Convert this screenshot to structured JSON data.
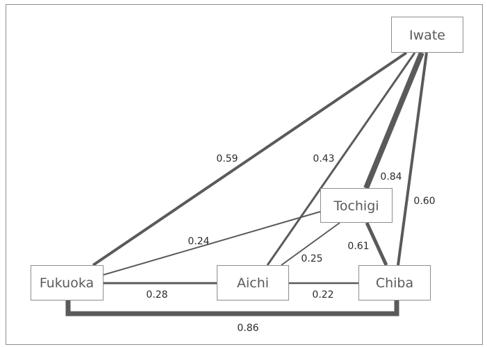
{
  "nodes": {
    "iwate": "Iwate",
    "tochigi": "Tochigi",
    "fukuoka": "Fukuoka",
    "aichi": "Aichi",
    "chiba": "Chiba"
  },
  "edges": {
    "iwate_fukuoka": "0.59",
    "iwate_aichi": "0.43",
    "iwate_tochigi": "0.84",
    "iwate_chiba": "0.60",
    "tochigi_fukuoka": "0.24",
    "tochigi_aichi": "0.25",
    "tochigi_chiba": "0.61",
    "fukuoka_aichi": "0.28",
    "aichi_chiba": "0.22",
    "fukuoka_chiba": "0.86"
  },
  "colors": {
    "edge": "#5a5a5a",
    "node_border": "#8c8c8c",
    "node_text": "#5a5a5a"
  }
}
